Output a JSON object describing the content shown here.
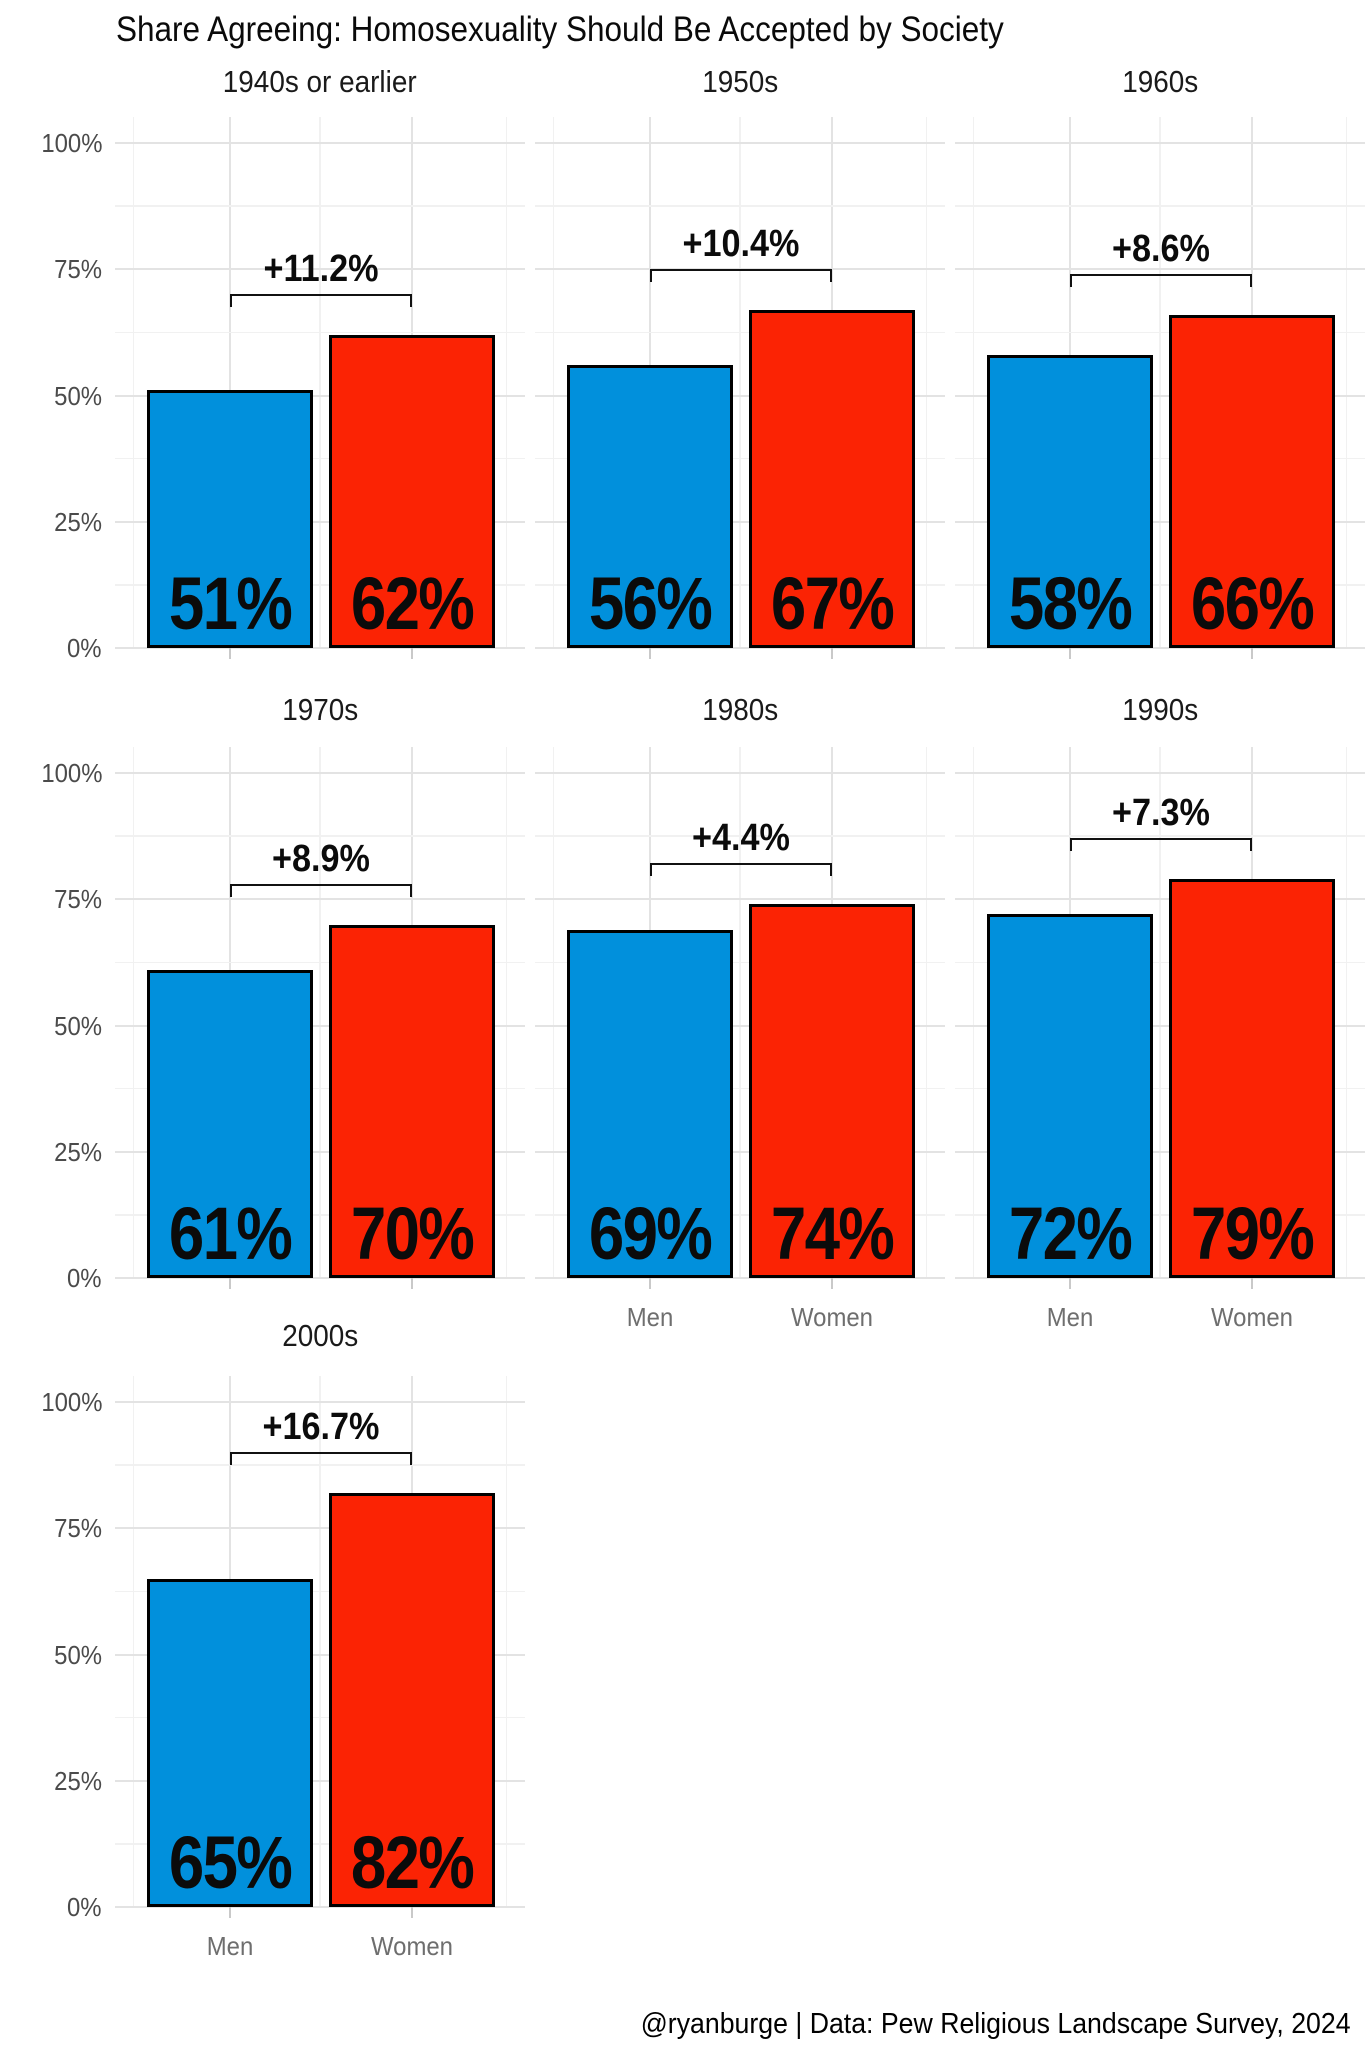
{
  "title": "Share Agreeing: Homosexuality Should Be Accepted by Society",
  "footer": "@ryanburge | Data: Pew Religious Landscape Survey, 2024",
  "colors": {
    "men_bar": "#0190DC",
    "women_bar": "#FB2304",
    "bar_border": "#000000",
    "grid_major": "#E3E3E3",
    "grid_minor": "#F1F1F1",
    "axis_text": "#4B4B4B",
    "category_text": "#6E6E6E",
    "annotation": "#0B0B0B"
  },
  "chart_data": {
    "type": "bar",
    "title": "Share Agreeing: Homosexuality Should Be Accepted by Society",
    "categories": [
      "Men",
      "Women"
    ],
    "ylim": [
      0,
      100
    ],
    "y_ticks": [
      {
        "v": 100,
        "label": "100%"
      },
      {
        "v": 75,
        "label": "75%"
      },
      {
        "v": 50,
        "label": "50%"
      },
      {
        "v": 25,
        "label": "25%"
      },
      {
        "v": 0,
        "label": "0%"
      }
    ],
    "grid": "major+minor, light gray on white",
    "legend": "none",
    "series_colors": {
      "Men": "#0190DC",
      "Women": "#FB2304"
    },
    "facets": [
      {
        "label": "1940s or earlier",
        "row": 0,
        "col": 0,
        "values": [
          51,
          62
        ],
        "value_labels": [
          "51%",
          "62%"
        ],
        "diff_label": "+11.2%",
        "show_cat_labels": false,
        "show_y_axis": true
      },
      {
        "label": "1950s",
        "row": 0,
        "col": 1,
        "values": [
          56,
          67
        ],
        "value_labels": [
          "56%",
          "67%"
        ],
        "diff_label": "+10.4%",
        "show_cat_labels": false,
        "show_y_axis": false
      },
      {
        "label": "1960s",
        "row": 0,
        "col": 2,
        "values": [
          58,
          66
        ],
        "value_labels": [
          "58%",
          "66%"
        ],
        "diff_label": "+8.6%",
        "show_cat_labels": false,
        "show_y_axis": false
      },
      {
        "label": "1970s",
        "row": 1,
        "col": 0,
        "values": [
          61,
          70
        ],
        "value_labels": [
          "61%",
          "70%"
        ],
        "diff_label": "+8.9%",
        "show_cat_labels": false,
        "show_y_axis": true
      },
      {
        "label": "1980s",
        "row": 1,
        "col": 1,
        "values": [
          69,
          74
        ],
        "value_labels": [
          "69%",
          "74%"
        ],
        "diff_label": "+4.4%",
        "show_cat_labels": true,
        "show_y_axis": false
      },
      {
        "label": "1990s",
        "row": 1,
        "col": 2,
        "values": [
          72,
          79
        ],
        "value_labels": [
          "72%",
          "79%"
        ],
        "diff_label": "+7.3%",
        "show_cat_labels": true,
        "show_y_axis": false
      },
      {
        "label": "2000s",
        "row": 2,
        "col": 0,
        "values": [
          65,
          82
        ],
        "value_labels": [
          "65%",
          "82%"
        ],
        "diff_label": "+16.7%",
        "show_cat_labels": true,
        "show_y_axis": true
      }
    ]
  }
}
